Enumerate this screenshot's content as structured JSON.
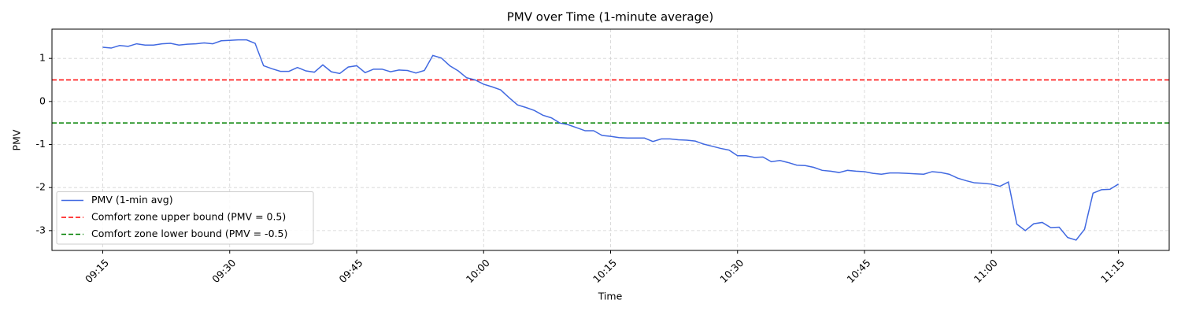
{
  "chart_data": {
    "type": "line",
    "title": "PMV over Time (1-minute average)",
    "x_label": "Time",
    "y_label": "PMV",
    "x": [
      "09:15",
      "09:16",
      "09:17",
      "09:18",
      "09:19",
      "09:20",
      "09:21",
      "09:22",
      "09:23",
      "09:24",
      "09:25",
      "09:26",
      "09:27",
      "09:28",
      "09:29",
      "09:30",
      "09:31",
      "09:32",
      "09:33",
      "09:34",
      "09:35",
      "09:36",
      "09:37",
      "09:38",
      "09:39",
      "09:40",
      "09:41",
      "09:42",
      "09:43",
      "09:44",
      "09:45",
      "09:46",
      "09:47",
      "09:48",
      "09:49",
      "09:50",
      "09:51",
      "09:52",
      "09:53",
      "09:54",
      "09:55",
      "09:56",
      "09:57",
      "09:58",
      "09:59",
      "10:00",
      "10:01",
      "10:02",
      "10:03",
      "10:04",
      "10:05",
      "10:06",
      "10:07",
      "10:08",
      "10:09",
      "10:10",
      "10:11",
      "10:12",
      "10:13",
      "10:14",
      "10:15",
      "10:16",
      "10:17",
      "10:18",
      "10:19",
      "10:20",
      "10:21",
      "10:22",
      "10:23",
      "10:24",
      "10:25",
      "10:26",
      "10:27",
      "10:28",
      "10:29",
      "10:30",
      "10:31",
      "10:32",
      "10:33",
      "10:34",
      "10:35",
      "10:36",
      "10:37",
      "10:38",
      "10:39",
      "10:40",
      "10:41",
      "10:42",
      "10:43",
      "10:44",
      "10:45",
      "10:46",
      "10:47",
      "10:48",
      "10:49",
      "10:50",
      "10:51",
      "10:52",
      "10:53",
      "10:54",
      "10:55",
      "10:56",
      "10:57",
      "10:58",
      "10:59",
      "11:00",
      "11:01",
      "11:02",
      "11:03",
      "11:04",
      "11:05",
      "11:06",
      "11:07",
      "11:08",
      "11:09",
      "11:10",
      "11:11",
      "11:12",
      "11:13",
      "11:14",
      "11:15"
    ],
    "series": [
      {
        "name": "PMV (1-min avg)",
        "color": "#4169e1",
        "values": [
          1.26,
          1.24,
          1.3,
          1.28,
          1.34,
          1.31,
          1.31,
          1.34,
          1.35,
          1.31,
          1.33,
          1.34,
          1.36,
          1.34,
          1.41,
          1.42,
          1.43,
          1.43,
          1.35,
          0.83,
          0.76,
          0.7,
          0.7,
          0.79,
          0.71,
          0.68,
          0.85,
          0.69,
          0.65,
          0.8,
          0.83,
          0.67,
          0.75,
          0.75,
          0.69,
          0.73,
          0.72,
          0.66,
          0.72,
          1.07,
          1.01,
          0.83,
          0.71,
          0.55,
          0.5,
          0.4,
          0.34,
          0.27,
          0.09,
          -0.08,
          -0.14,
          -0.21,
          -0.32,
          -0.38,
          -0.5,
          -0.54,
          -0.61,
          -0.68,
          -0.68,
          -0.79,
          -0.81,
          -0.84,
          -0.85,
          -0.85,
          -0.85,
          -0.93,
          -0.87,
          -0.87,
          -0.89,
          -0.9,
          -0.92,
          -0.99,
          -1.04,
          -1.09,
          -1.13,
          -1.26,
          -1.26,
          -1.3,
          -1.29,
          -1.4,
          -1.37,
          -1.42,
          -1.48,
          -1.49,
          -1.53,
          -1.6,
          -1.62,
          -1.65,
          -1.6,
          -1.62,
          -1.63,
          -1.67,
          -1.69,
          -1.66,
          -1.66,
          -1.67,
          -1.68,
          -1.69,
          -1.63,
          -1.65,
          -1.69,
          -1.78,
          -1.84,
          -1.89,
          -1.9,
          -1.92,
          -1.97,
          -1.87,
          -2.85,
          -3.0,
          -2.84,
          -2.81,
          -2.93,
          -2.92,
          -3.16,
          -3.22,
          -2.97,
          -2.13,
          -2.05,
          -2.04,
          -1.92
        ]
      }
    ],
    "hlines": [
      {
        "name": "Comfort zone upper bound (PMV = 0.5)",
        "color": "#ff0000",
        "value": 0.5
      },
      {
        "name": "Comfort zone lower bound (PMV = -0.5)",
        "color": "#008000",
        "value": -0.5
      }
    ],
    "xlim": [
      "09:09",
      "11:21"
    ],
    "xticks": [
      "09:15",
      "09:30",
      "09:45",
      "10:00",
      "10:15",
      "10:30",
      "10:45",
      "11:00",
      "11:15"
    ],
    "ylim": [
      -3.46,
      1.68
    ],
    "yticks": [
      -3,
      -2,
      -1,
      0,
      1
    ],
    "grid": true,
    "legend": "lower left"
  }
}
